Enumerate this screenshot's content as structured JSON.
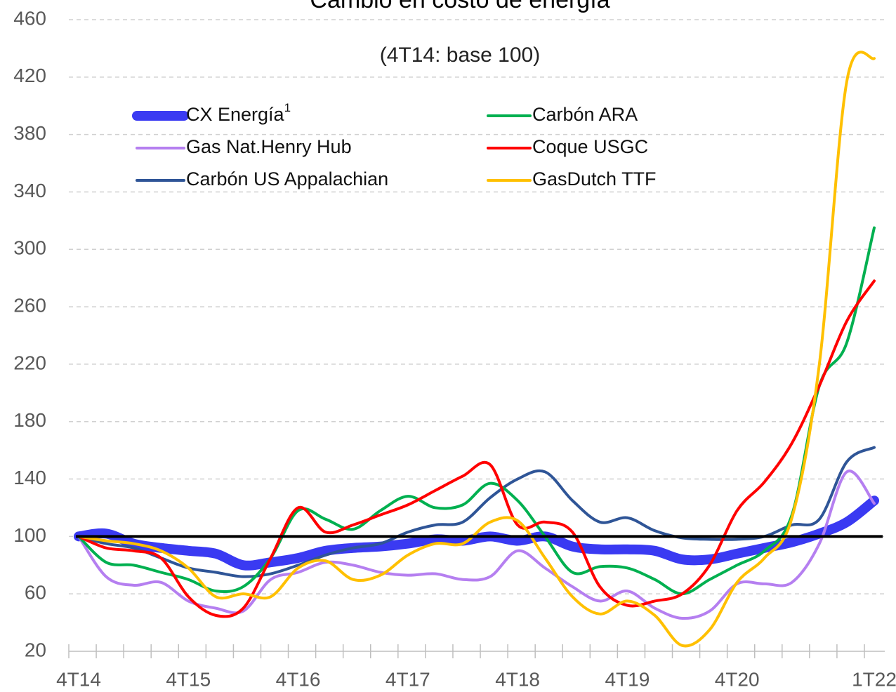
{
  "chart_data": {
    "type": "line",
    "title": "Cambio en costo de energía",
    "subtitle": "(4T14: base 100)",
    "categories": [
      "4T14",
      null,
      null,
      null,
      "4T15",
      null,
      null,
      null,
      "4T16",
      null,
      null,
      null,
      "4T17",
      null,
      null,
      null,
      "4T18",
      null,
      null,
      null,
      "4T19",
      null,
      null,
      null,
      "4T20",
      null,
      null,
      null,
      null,
      "1T22"
    ],
    "series": [
      {
        "name": "CX Energía",
        "name_superscript": "1",
        "color": "#3a3af2",
        "width": 14,
        "values": [
          100,
          102,
          95,
          92,
          90,
          88,
          80,
          82,
          85,
          90,
          92,
          93,
          95,
          98,
          97,
          100,
          97,
          100,
          93,
          91,
          91,
          90,
          84,
          84,
          88,
          92,
          96,
          102,
          110,
          125
        ]
      },
      {
        "name": "Gas Nat.Henry Hub",
        "color": "#b57ff0",
        "width": 4,
        "values": [
          100,
          72,
          66,
          68,
          55,
          50,
          48,
          70,
          75,
          82,
          80,
          75,
          73,
          74,
          70,
          72,
          90,
          78,
          65,
          55,
          62,
          50,
          43,
          48,
          67,
          67,
          68,
          95,
          145,
          123
        ]
      },
      {
        "name": "Carbón US Appalachian",
        "color": "#2f5597",
        "width": 4,
        "values": [
          100,
          95,
          92,
          85,
          78,
          75,
          72,
          74,
          80,
          87,
          92,
          95,
          103,
          108,
          110,
          127,
          140,
          145,
          125,
          110,
          113,
          104,
          99,
          98,
          98,
          100,
          108,
          112,
          152,
          162
        ]
      },
      {
        "name": "Carbón ARA",
        "color": "#00b050",
        "width": 4,
        "values": [
          100,
          82,
          80,
          75,
          70,
          62,
          65,
          85,
          118,
          112,
          105,
          118,
          128,
          120,
          122,
          137,
          125,
          100,
          75,
          79,
          78,
          70,
          60,
          70,
          80,
          90,
          115,
          205,
          235,
          315
        ]
      },
      {
        "name": "Coque USGC",
        "color": "#ff0000",
        "width": 4,
        "values": [
          100,
          92,
          90,
          85,
          58,
          45,
          50,
          85,
          120,
          103,
          108,
          115,
          122,
          132,
          142,
          150,
          108,
          110,
          103,
          65,
          52,
          55,
          60,
          80,
          118,
          138,
          165,
          205,
          250,
          278
        ]
      },
      {
        "name": "GasDutch TTF",
        "color": "#ffc000",
        "width": 4,
        "values": [
          100,
          97,
          95,
          90,
          78,
          58,
          60,
          58,
          78,
          83,
          70,
          73,
          87,
          95,
          95,
          110,
          111,
          85,
          58,
          46,
          55,
          45,
          24,
          35,
          68,
          85,
          113,
          220,
          417,
          433
        ]
      }
    ],
    "reference_line": 100,
    "ylim": [
      20,
      460
    ],
    "yticks": [
      20,
      60,
      100,
      140,
      180,
      220,
      260,
      300,
      340,
      380,
      420,
      460
    ],
    "grid": true
  }
}
